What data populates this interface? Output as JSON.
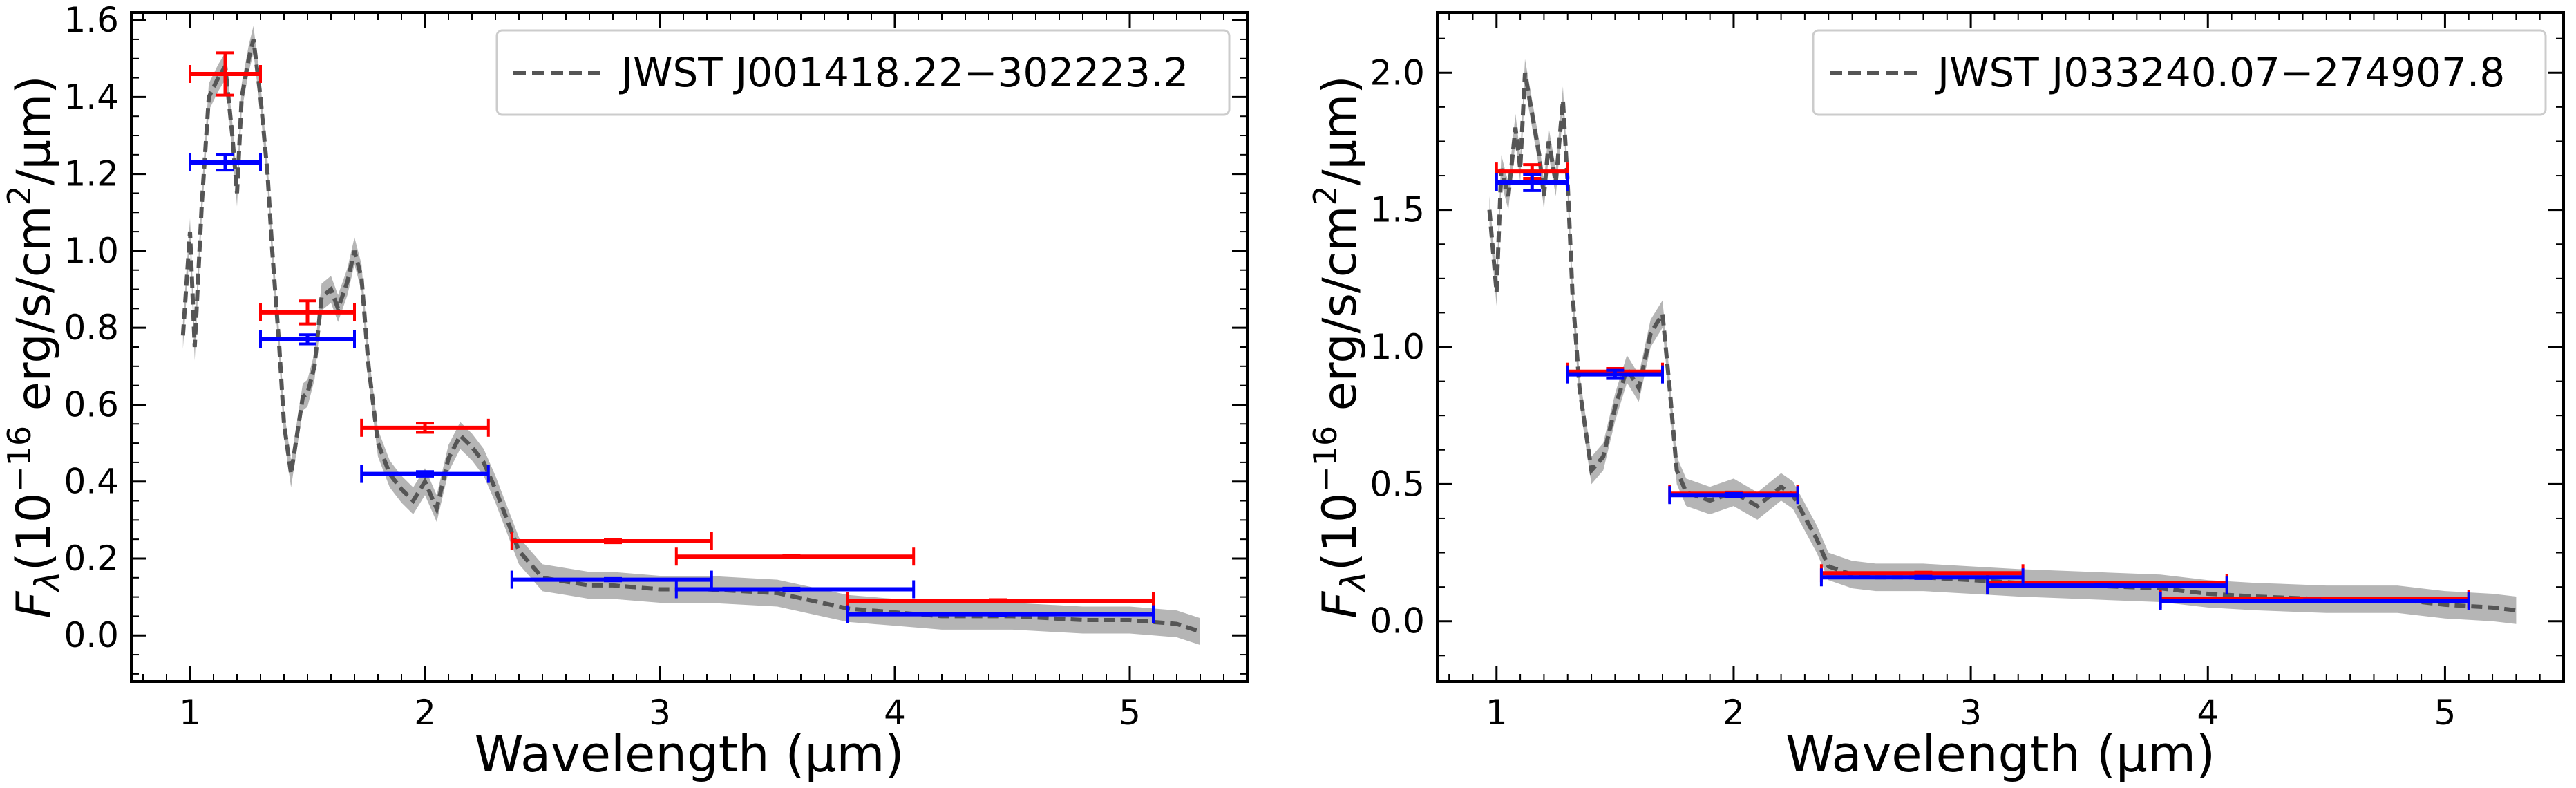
{
  "colors": {
    "red": "#ff0000",
    "blue": "#0000ff",
    "model_line": "#555555",
    "model_band": "#b5b5b5",
    "axis": "#000000"
  },
  "chart_data": [
    {
      "type": "line",
      "legend_label": "JWST J001418.22−302223.2",
      "legend_position": "top-right",
      "xlabel": "Wavelength (μm)",
      "ylabel": "Fλ(10⁻¹⁶ erg/s/cm²/μm)",
      "xlim": [
        0.75,
        5.5
      ],
      "ylim": [
        -0.12,
        1.62
      ],
      "xticks": [
        1,
        2,
        3,
        4,
        5
      ],
      "xtick_labels": [
        "1",
        "2",
        "3",
        "4",
        "5"
      ],
      "yticks": [
        0.0,
        0.2,
        0.4,
        0.6,
        0.8,
        1.0,
        1.2,
        1.4,
        1.6
      ],
      "ytick_labels": [
        "0.0",
        "0.2",
        "0.4",
        "0.6",
        "0.8",
        "1.0",
        "1.2",
        "1.4",
        "1.6"
      ],
      "model_spectrum": {
        "x": [
          0.97,
          1.0,
          1.02,
          1.05,
          1.08,
          1.12,
          1.15,
          1.18,
          1.2,
          1.22,
          1.25,
          1.27,
          1.3,
          1.33,
          1.35,
          1.38,
          1.4,
          1.43,
          1.45,
          1.48,
          1.5,
          1.53,
          1.56,
          1.6,
          1.63,
          1.67,
          1.7,
          1.73,
          1.76,
          1.8,
          1.85,
          1.9,
          1.95,
          2.0,
          2.05,
          2.1,
          2.15,
          2.2,
          2.25,
          2.3,
          2.35,
          2.4,
          2.5,
          2.6,
          2.7,
          2.8,
          3.0,
          3.2,
          3.5,
          3.8,
          4.0,
          4.2,
          4.5,
          4.8,
          5.0,
          5.2,
          5.3
        ],
        "y": [
          0.78,
          1.05,
          0.75,
          1.12,
          1.4,
          1.45,
          1.48,
          1.3,
          1.15,
          1.4,
          1.5,
          1.55,
          1.4,
          1.2,
          1.0,
          0.75,
          0.55,
          0.42,
          0.5,
          0.62,
          0.63,
          0.7,
          0.88,
          0.9,
          0.85,
          0.92,
          1.0,
          0.93,
          0.7,
          0.5,
          0.42,
          0.38,
          0.35,
          0.4,
          0.33,
          0.46,
          0.52,
          0.49,
          0.45,
          0.38,
          0.3,
          0.22,
          0.15,
          0.14,
          0.13,
          0.13,
          0.12,
          0.12,
          0.11,
          0.07,
          0.06,
          0.05,
          0.05,
          0.04,
          0.04,
          0.03,
          0.01
        ],
        "band_halfwidth": 0.035
      },
      "red_points": [
        {
          "x": 1.15,
          "y": 1.46,
          "xlo": 1.0,
          "xhi": 1.3,
          "yerr": 0.055
        },
        {
          "x": 1.5,
          "y": 0.84,
          "xlo": 1.3,
          "xhi": 1.7,
          "yerr": 0.03
        },
        {
          "x": 2.0,
          "y": 0.54,
          "xlo": 1.73,
          "xhi": 2.27,
          "yerr": 0.012
        },
        {
          "x": 2.8,
          "y": 0.245,
          "xlo": 2.37,
          "xhi": 3.22,
          "yerr": 0.004
        },
        {
          "x": 3.56,
          "y": 0.205,
          "xlo": 3.07,
          "xhi": 4.08,
          "yerr": 0.003
        },
        {
          "x": 4.44,
          "y": 0.09,
          "xlo": 3.8,
          "xhi": 5.1,
          "yerr": 0.003
        }
      ],
      "blue_points": [
        {
          "x": 1.15,
          "y": 1.23,
          "xlo": 1.0,
          "xhi": 1.3,
          "yerr": 0.02
        },
        {
          "x": 1.5,
          "y": 0.77,
          "xlo": 1.3,
          "xhi": 1.7,
          "yerr": 0.012
        },
        {
          "x": 2.0,
          "y": 0.42,
          "xlo": 1.73,
          "xhi": 2.27,
          "yerr": 0.006
        },
        {
          "x": 2.8,
          "y": 0.145,
          "xlo": 2.37,
          "xhi": 3.22,
          "yerr": 0.003
        },
        {
          "x": 3.56,
          "y": 0.12,
          "xlo": 3.07,
          "xhi": 4.08,
          "yerr": 0.003
        },
        {
          "x": 4.44,
          "y": 0.055,
          "xlo": 3.8,
          "xhi": 5.1,
          "yerr": 0.003
        }
      ]
    },
    {
      "type": "line",
      "legend_label": "JWST J033240.07−274907.8",
      "legend_position": "top-right",
      "xlabel": "Wavelength (μm)",
      "ylabel": "Fλ(10⁻¹⁶ erg/s/cm²/μm)",
      "xlim": [
        0.75,
        5.5
      ],
      "ylim": [
        -0.22,
        2.22
      ],
      "xticks": [
        1,
        2,
        3,
        4,
        5
      ],
      "xtick_labels": [
        "1",
        "2",
        "3",
        "4",
        "5"
      ],
      "yticks": [
        0.0,
        0.5,
        1.0,
        1.5,
        2.0
      ],
      "ytick_labels": [
        "0.0",
        "0.5",
        "1.0",
        "1.5",
        "2.0"
      ],
      "model_spectrum": {
        "x": [
          0.97,
          1.0,
          1.02,
          1.05,
          1.08,
          1.1,
          1.12,
          1.15,
          1.18,
          1.2,
          1.22,
          1.25,
          1.28,
          1.3,
          1.32,
          1.35,
          1.4,
          1.45,
          1.5,
          1.55,
          1.6,
          1.65,
          1.7,
          1.73,
          1.76,
          1.8,
          1.9,
          2.0,
          2.1,
          2.2,
          2.25,
          2.3,
          2.35,
          2.4,
          2.5,
          2.6,
          2.8,
          3.0,
          3.2,
          3.5,
          3.8,
          4.0,
          4.2,
          4.5,
          4.8,
          5.0,
          5.2,
          5.3
        ],
        "y": [
          1.5,
          1.2,
          1.65,
          1.55,
          1.8,
          1.65,
          2.0,
          1.85,
          1.7,
          1.55,
          1.75,
          1.6,
          1.9,
          1.6,
          1.2,
          0.85,
          0.55,
          0.6,
          0.78,
          0.92,
          0.85,
          1.05,
          1.12,
          0.85,
          0.55,
          0.47,
          0.44,
          0.47,
          0.42,
          0.49,
          0.46,
          0.38,
          0.3,
          0.2,
          0.17,
          0.16,
          0.16,
          0.15,
          0.14,
          0.13,
          0.12,
          0.1,
          0.09,
          0.08,
          0.08,
          0.06,
          0.05,
          0.04
        ],
        "band_halfwidth": 0.05
      },
      "red_points": [
        {
          "x": 1.15,
          "y": 1.64,
          "xlo": 1.0,
          "xhi": 1.3,
          "yerr": 0.025
        },
        {
          "x": 1.5,
          "y": 0.91,
          "xlo": 1.3,
          "xhi": 1.7,
          "yerr": 0.012
        },
        {
          "x": 2.0,
          "y": 0.465,
          "xlo": 1.73,
          "xhi": 2.27,
          "yerr": 0.006
        },
        {
          "x": 2.8,
          "y": 0.175,
          "xlo": 2.37,
          "xhi": 3.22,
          "yerr": 0.004
        },
        {
          "x": 3.56,
          "y": 0.14,
          "xlo": 3.07,
          "xhi": 4.08,
          "yerr": 0.003
        },
        {
          "x": 4.44,
          "y": 0.08,
          "xlo": 3.8,
          "xhi": 5.1,
          "yerr": 0.003
        }
      ],
      "blue_points": [
        {
          "x": 1.15,
          "y": 1.6,
          "xlo": 1.0,
          "xhi": 1.3,
          "yerr": 0.03
        },
        {
          "x": 1.5,
          "y": 0.9,
          "xlo": 1.3,
          "xhi": 1.7,
          "yerr": 0.015
        },
        {
          "x": 2.0,
          "y": 0.46,
          "xlo": 1.73,
          "xhi": 2.27,
          "yerr": 0.006
        },
        {
          "x": 2.8,
          "y": 0.16,
          "xlo": 2.37,
          "xhi": 3.22,
          "yerr": 0.004
        },
        {
          "x": 3.56,
          "y": 0.13,
          "xlo": 3.07,
          "xhi": 4.08,
          "yerr": 0.003
        },
        {
          "x": 4.44,
          "y": 0.075,
          "xlo": 3.8,
          "xhi": 5.1,
          "yerr": 0.003
        }
      ]
    }
  ]
}
